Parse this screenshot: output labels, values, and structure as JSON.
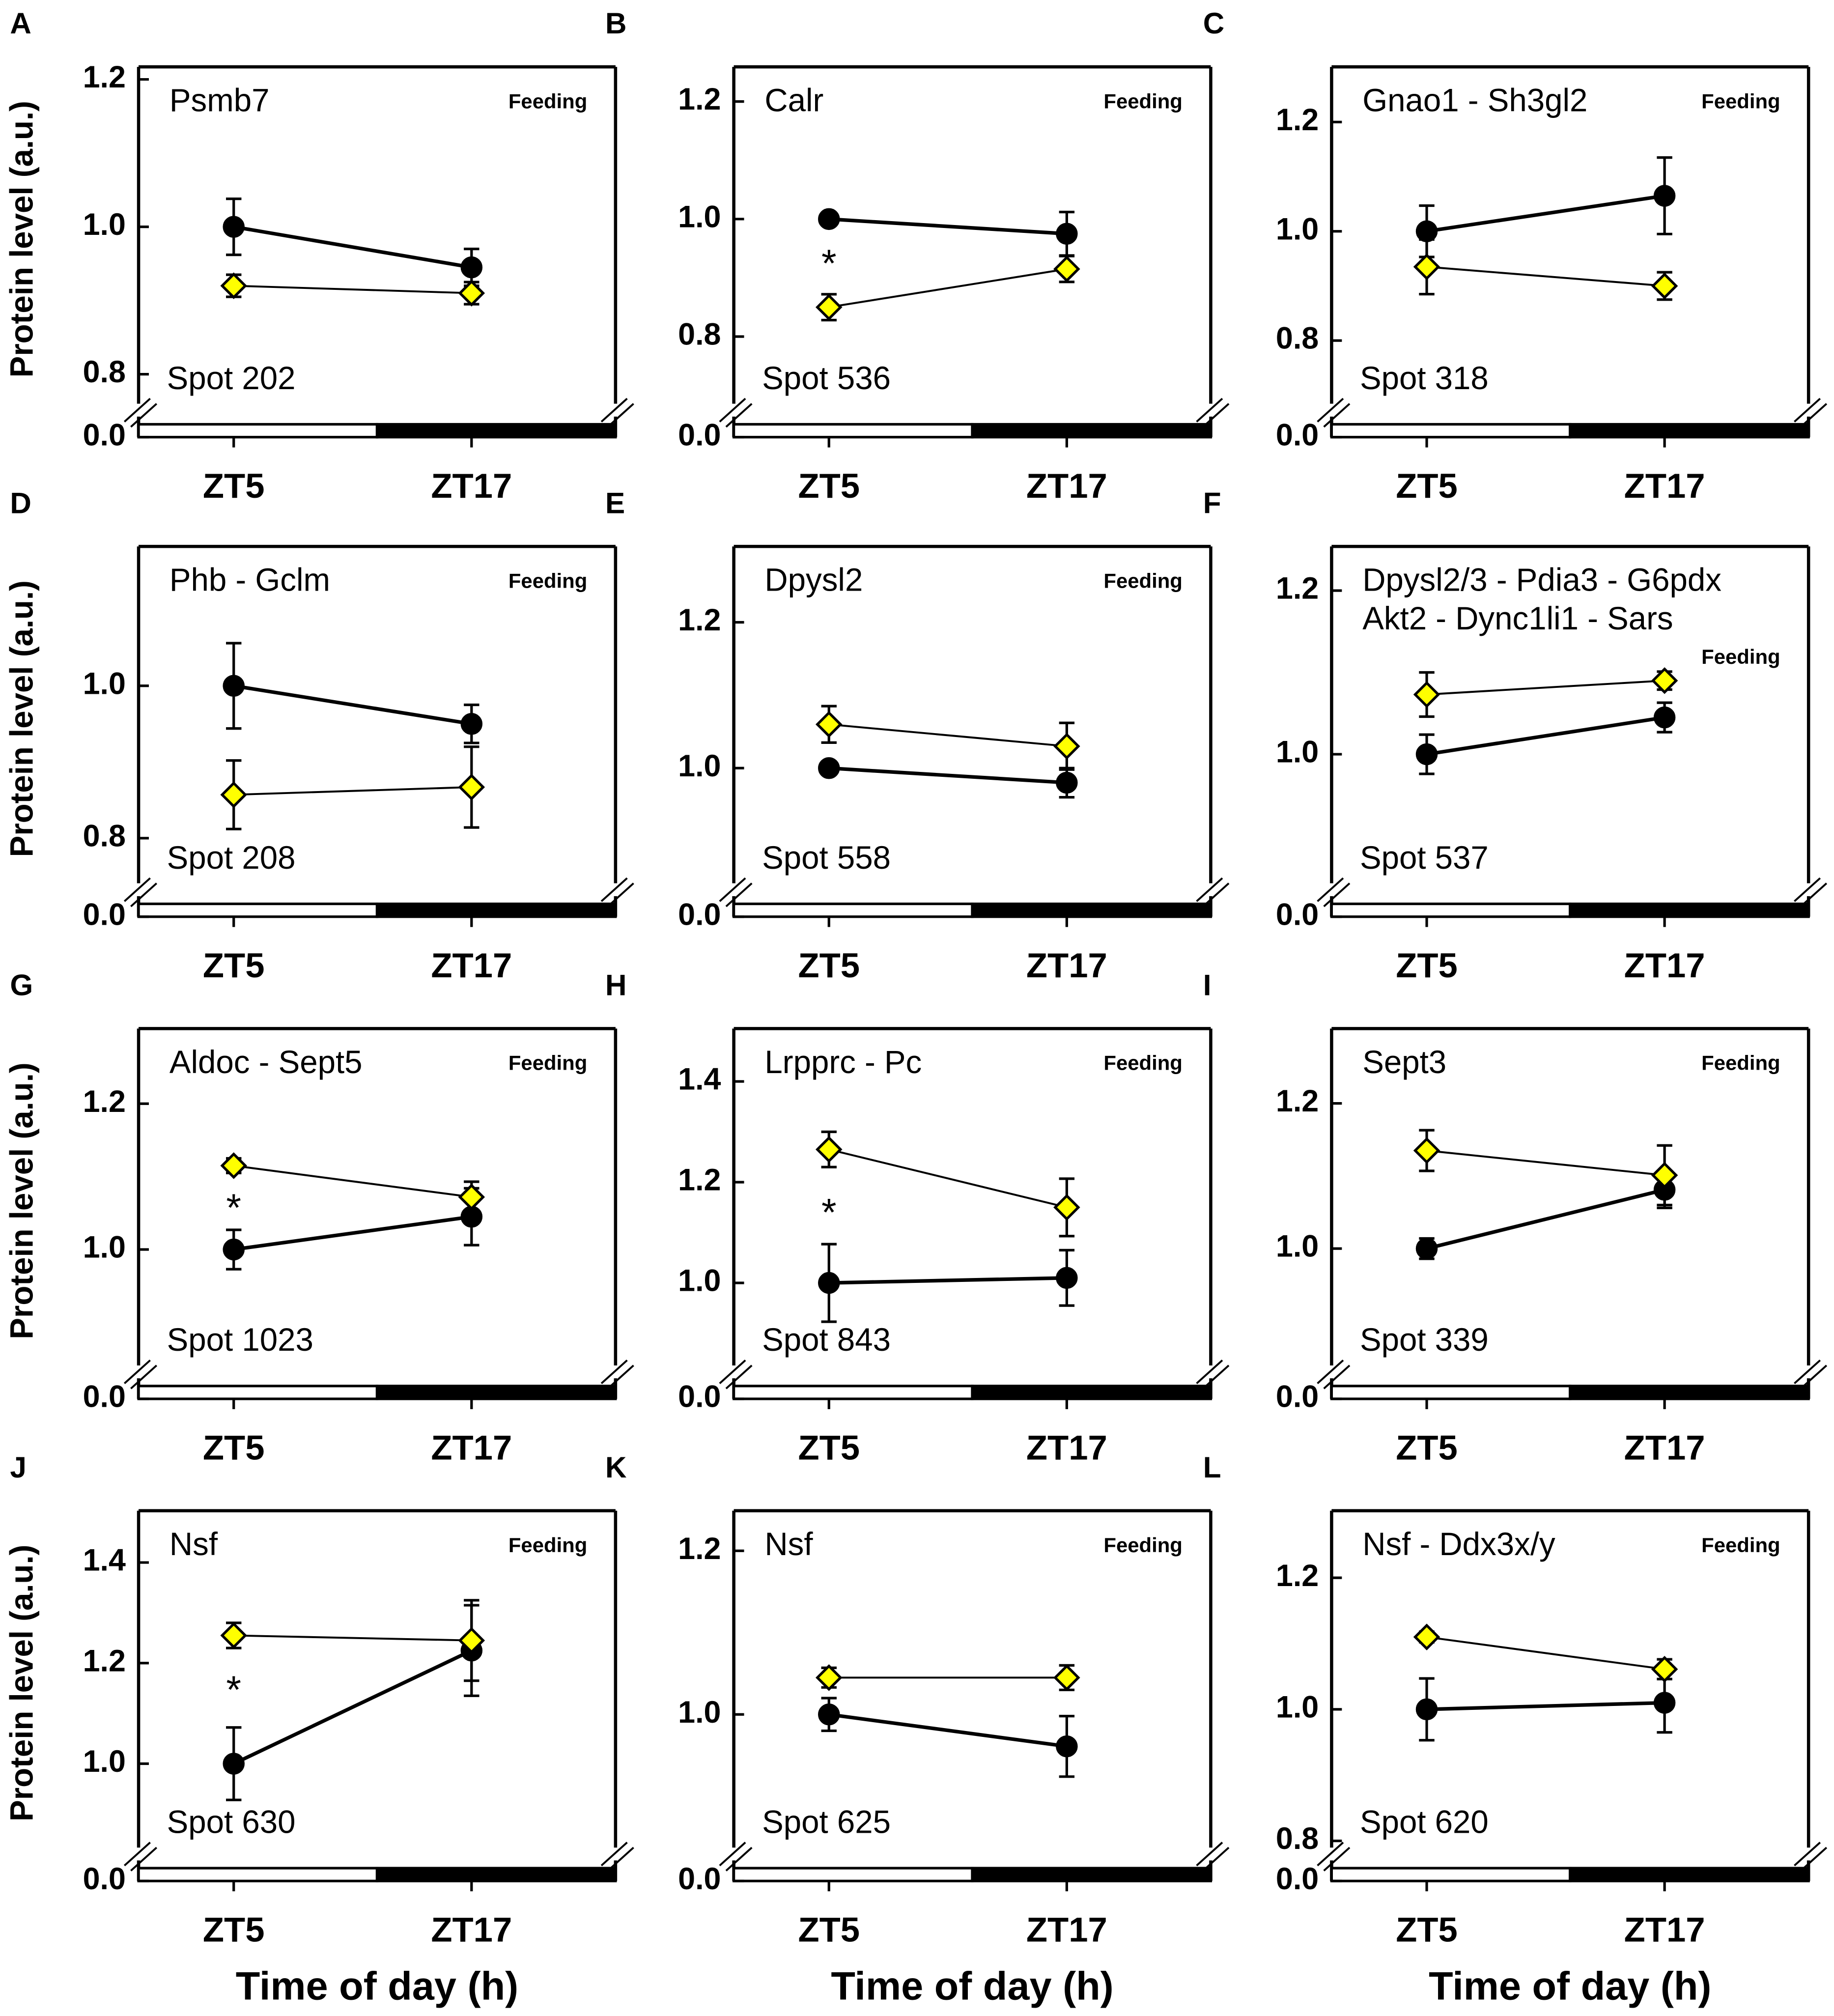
{
  "chart_data": [
    {
      "type": "line",
      "panel": "A",
      "title": "Psmb7",
      "annotation": "Feeding",
      "spot": "Spot 202",
      "ylabel": "Protein level (a.u.)",
      "categories": [
        "ZT5",
        "ZT17"
      ],
      "ylim": [
        0.753,
        1.217
      ],
      "yticks": [
        {
          "value": 0,
          "label": "0.0"
        },
        0.8,
        {
          "value": 1,
          "label": "1.0"
        },
        1.2
      ],
      "series": [
        {
          "color": "#000000",
          "marker": "circle",
          "values": [
            1.0,
            0.945
          ],
          "errors": [
            0.038,
            0.025
          ]
        },
        {
          "color": "#ffff00",
          "marker": "diamond",
          "values": [
            0.92,
            0.91
          ],
          "errors": [
            0.015,
            0.015
          ]
        }
      ]
    },
    {
      "type": "line",
      "panel": "B",
      "title": "Calr",
      "annotation": "Feeding",
      "spot": "Spot 536",
      "categories": [
        "ZT5",
        "ZT17"
      ],
      "ylim": [
        0.677,
        1.259
      ],
      "yticks": [
        {
          "value": 0,
          "label": "0.0"
        },
        0.8,
        {
          "value": 1,
          "label": "1.0"
        },
        1.2
      ],
      "series": [
        {
          "color": "#000000",
          "marker": "circle",
          "values": [
            1.0,
            0.975
          ],
          "errors": [
            0.006,
            0.037
          ]
        },
        {
          "color": "#ffff00",
          "marker": "diamond",
          "values": [
            0.85,
            0.915
          ],
          "errors": [
            0.022,
            0.022
          ]
        }
      ],
      "annotations": [
        {
          "text": "*",
          "x": "ZT5",
          "y": 0.928
        }
      ]
    },
    {
      "type": "line",
      "panel": "C",
      "title": "Gnao1 - Sh3gl2",
      "annotation": "Feeding",
      "spot": "Spot 318",
      "categories": [
        "ZT5",
        "ZT17"
      ],
      "ylim": [
        0.675,
        1.301
      ],
      "yticks": [
        {
          "value": 0,
          "label": "0.0"
        },
        0.8,
        {
          "value": 1,
          "label": "1.0"
        },
        1.2
      ],
      "series": [
        {
          "color": "#000000",
          "marker": "circle",
          "values": [
            1.0,
            1.065
          ],
          "errors": [
            0.047,
            0.07
          ]
        },
        {
          "color": "#ffff00",
          "marker": "diamond",
          "values": [
            0.935,
            0.9
          ],
          "errors": [
            0.05,
            0.025
          ]
        }
      ]
    },
    {
      "type": "line",
      "panel": "D",
      "title": "Phb - Gclm",
      "annotation": "Feeding",
      "spot": "Spot 208",
      "ylabel": "Protein level (a.u.)",
      "categories": [
        "ZT5",
        "ZT17"
      ],
      "ylim": [
        0.734,
        1.183
      ],
      "yticks": [
        {
          "value": 0,
          "label": "0.0"
        },
        0.8,
        {
          "value": 1,
          "label": "1.0"
        }
      ],
      "series": [
        {
          "color": "#000000",
          "marker": "circle",
          "values": [
            1.0,
            0.95
          ],
          "errors": [
            0.056,
            0.025
          ]
        },
        {
          "color": "#ffff00",
          "marker": "diamond",
          "values": [
            0.857,
            0.867
          ],
          "errors": [
            0.045,
            0.053
          ]
        }
      ]
    },
    {
      "type": "line",
      "panel": "E",
      "title": "Dpysl2",
      "annotation": "Feeding",
      "spot": "Spot 558",
      "categories": [
        "ZT5",
        "ZT17"
      ],
      "ylim": [
        0.835,
        1.304
      ],
      "yticks": [
        {
          "value": 0,
          "label": "0.0"
        },
        {
          "value": 1,
          "label": "1.0"
        },
        1.2
      ],
      "series": [
        {
          "color": "#000000",
          "marker": "circle",
          "values": [
            1.0,
            0.98
          ],
          "errors": [
            0.006,
            0.02
          ]
        },
        {
          "color": "#ffff00",
          "marker": "diamond",
          "values": [
            1.06,
            1.03
          ],
          "errors": [
            0.025,
            0.032
          ]
        }
      ]
    },
    {
      "type": "line",
      "panel": "F",
      "title": "Dpysl2/3 - Pdia3 - G6pdx",
      "subtitle": "Akt2 - Dync1li1 - Sars",
      "annotation": "Feeding",
      "spot": "Spot 537",
      "categories": [
        "ZT5",
        "ZT17"
      ],
      "ylim": [
        0.836,
        1.254
      ],
      "yticks": [
        {
          "value": 0,
          "label": "0.0"
        },
        {
          "value": 1,
          "label": "1.0"
        },
        1.2
      ],
      "series": [
        {
          "color": "#000000",
          "marker": "circle",
          "values": [
            1.0,
            1.045
          ],
          "errors": [
            0.024,
            0.018
          ]
        },
        {
          "color": "#ffff00",
          "marker": "diamond",
          "values": [
            1.073,
            1.09
          ],
          "errors": [
            0.027,
            0.011
          ]
        }
      ]
    },
    {
      "type": "line",
      "panel": "G",
      "title": "Aldoc - Sept5",
      "annotation": "Feeding",
      "spot": "Spot 1023",
      "ylabel": "Protein level (a.u.)",
      "categories": [
        "ZT5",
        "ZT17"
      ],
      "ylim": [
        0.834,
        1.303
      ],
      "yticks": [
        {
          "value": 0,
          "label": "0.0"
        },
        {
          "value": 1,
          "label": "1.0"
        },
        1.2
      ],
      "series": [
        {
          "color": "#000000",
          "marker": "circle",
          "values": [
            1.0,
            1.045
          ],
          "errors": [
            0.027,
            0.039
          ]
        },
        {
          "color": "#ffff00",
          "marker": "diamond",
          "values": [
            1.115,
            1.072
          ],
          "errors": [
            0.01,
            0.021
          ]
        }
      ],
      "annotations": [
        {
          "text": "*",
          "x": "ZT5",
          "y": 1.06
        }
      ]
    },
    {
      "type": "line",
      "panel": "H",
      "title": "Lrpprc - Pc",
      "annotation": "Feeding",
      "spot": "Spot 843",
      "categories": [
        "ZT5",
        "ZT17"
      ],
      "ylim": [
        0.826,
        1.505
      ],
      "yticks": [
        {
          "value": 0,
          "label": "0.0"
        },
        {
          "value": 1,
          "label": "1.0"
        },
        1.2,
        1.4
      ],
      "series": [
        {
          "color": "#000000",
          "marker": "circle",
          "values": [
            1.0,
            1.01
          ],
          "errors": [
            0.077,
            0.055
          ]
        },
        {
          "color": "#ffff00",
          "marker": "diamond",
          "values": [
            1.265,
            1.15
          ],
          "errors": [
            0.035,
            0.057
          ]
        }
      ],
      "annotations": [
        {
          "text": "*",
          "x": "ZT5",
          "y": 1.144
        }
      ]
    },
    {
      "type": "line",
      "panel": "I",
      "title": "Sept3",
      "annotation": "Feeding",
      "spot": "Spot 339",
      "categories": [
        "ZT5",
        "ZT17"
      ],
      "ylim": [
        0.832,
        1.303
      ],
      "yticks": [
        {
          "value": 0,
          "label": "0.0"
        },
        {
          "value": 1,
          "label": "1.0"
        },
        1.2
      ],
      "series": [
        {
          "color": "#000000",
          "marker": "circle",
          "values": [
            1.0,
            1.081
          ],
          "errors": [
            0.014,
            0.025
          ]
        },
        {
          "color": "#ffff00",
          "marker": "diamond",
          "values": [
            1.135,
            1.101
          ],
          "errors": [
            0.028,
            0.041
          ]
        }
      ]
    },
    {
      "type": "line",
      "panel": "J",
      "title": "Nsf",
      "annotation": "Feeding",
      "spot": "Spot 630",
      "ylabel": "Protein level (a.u.)",
      "xlabel": "Time of day (h)",
      "categories": [
        "ZT5",
        "ZT17"
      ],
      "ylim": [
        0.823,
        1.503
      ],
      "yticks": [
        {
          "value": 0,
          "label": "0.0"
        },
        {
          "value": 1,
          "label": "1.0"
        },
        1.2,
        1.4
      ],
      "series": [
        {
          "color": "#000000",
          "marker": "circle",
          "values": [
            1.0,
            1.225
          ],
          "errors": [
            0.072,
            0.09
          ]
        },
        {
          "color": "#ffff00",
          "marker": "diamond",
          "values": [
            1.255,
            1.245
          ],
          "errors": [
            0.025,
            0.08
          ]
        }
      ],
      "annotations": [
        {
          "text": "*",
          "x": "ZT5",
          "y": 1.151
        }
      ]
    },
    {
      "type": "line",
      "panel": "K",
      "title": "Nsf",
      "annotation": "Feeding",
      "spot": "Spot 625",
      "xlabel": "Time of day (h)",
      "categories": [
        "ZT5",
        "ZT17"
      ],
      "ylim": [
        0.831,
        1.249
      ],
      "yticks": [
        {
          "value": 0,
          "label": "0.0"
        },
        {
          "value": 1,
          "label": "1.0"
        },
        1.2
      ],
      "series": [
        {
          "color": "#000000",
          "marker": "circle",
          "values": [
            1.0,
            0.961
          ],
          "errors": [
            0.02,
            0.037
          ]
        },
        {
          "color": "#ffff00",
          "marker": "diamond",
          "values": [
            1.045,
            1.045
          ],
          "errors": [
            0.012,
            0.015
          ]
        }
      ]
    },
    {
      "type": "line",
      "panel": "L",
      "title": "Nsf - Ddx3x/y",
      "annotation": "Feeding",
      "spot": "Spot 620",
      "xlabel": "Time of day (h)",
      "categories": [
        "ZT5",
        "ZT17"
      ],
      "ylim": [
        0.782,
        1.302
      ],
      "yticks": [
        {
          "value": 0,
          "label": "0.0"
        },
        0.8,
        {
          "value": 1,
          "label": "1.0"
        },
        1.2
      ],
      "series": [
        {
          "color": "#000000",
          "marker": "circle",
          "values": [
            1.0,
            1.01
          ],
          "errors": [
            0.047,
            0.045
          ]
        },
        {
          "color": "#ffff00",
          "marker": "diamond",
          "values": [
            1.11,
            1.061
          ],
          "errors": [
            0.008,
            0.015
          ]
        }
      ]
    }
  ]
}
